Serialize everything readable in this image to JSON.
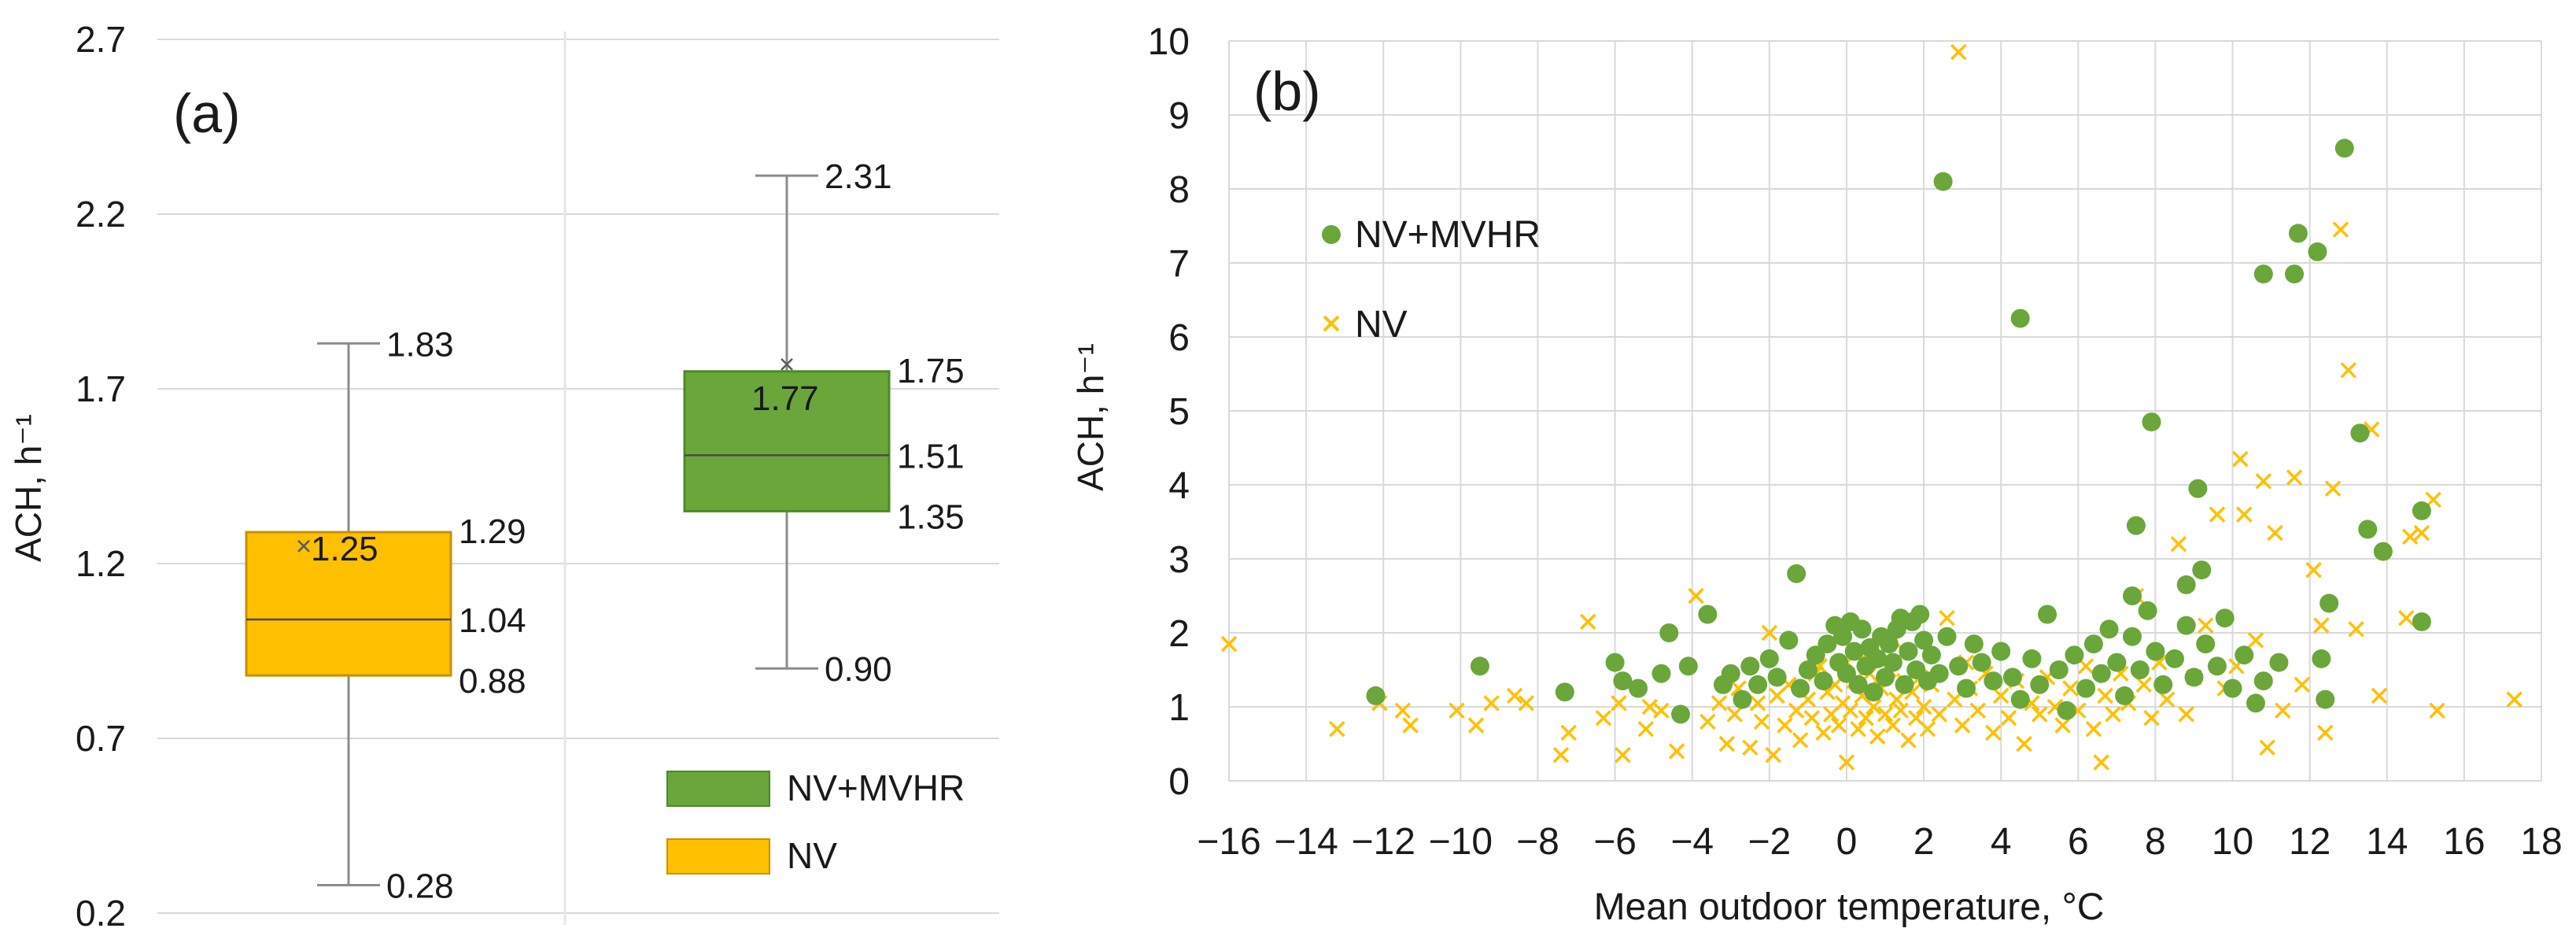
{
  "colors": {
    "nv_mvhr": "#6aa63a",
    "nv_mvhr_dark": "#4d8a25",
    "nv": "#ffc000",
    "nv_dark": "#c79100",
    "grid": "#d9d9d9",
    "whisker": "#8c8c8c"
  },
  "chart_data": [
    {
      "type": "box",
      "panel_label": "(a)",
      "ylabel": "ACH, h⁻¹",
      "ylim": [
        0.2,
        2.7
      ],
      "yticks": [
        0.2,
        0.7,
        1.2,
        1.7,
        2.2,
        2.7
      ],
      "ytick_labels": [
        "0.2",
        "0.7",
        "1.2",
        "1.7",
        "2.2",
        "2.7"
      ],
      "legend": [
        "NV+MVHR",
        "NV"
      ],
      "series": [
        {
          "name": "NV",
          "color": "#ffc000",
          "min": 0.28,
          "q1": 0.88,
          "median": 1.04,
          "q3": 1.29,
          "max": 1.83,
          "mean": 1.25,
          "labels": {
            "max": "1.83",
            "q3": "1.29",
            "mean": "1.25",
            "median": "1.04",
            "q1": "0.88",
            "min": "0.28"
          }
        },
        {
          "name": "NV+MVHR",
          "color": "#6aa63a",
          "min": 0.9,
          "q1": 1.35,
          "median": 1.51,
          "q3": 1.75,
          "max": 2.31,
          "mean": 1.77,
          "labels": {
            "max": "2.31",
            "q3": "1.75",
            "mean": "1.77",
            "median": "1.51",
            "q1": "1.35",
            "min": "0.90"
          }
        }
      ]
    },
    {
      "type": "scatter",
      "panel_label": "(b)",
      "xlabel": "Mean outdoor temperature, °C",
      "ylabel": "ACH, h⁻¹",
      "xlim": [
        -16,
        18
      ],
      "ylim": [
        0,
        10
      ],
      "xticks": [
        -16,
        -14,
        -12,
        -10,
        -8,
        -6,
        -4,
        -2,
        0,
        2,
        4,
        6,
        8,
        10,
        12,
        14,
        16,
        18
      ],
      "xtick_labels": [
        "−16",
        "−14",
        "−12",
        "−10",
        "−8",
        "−6",
        "−4",
        "−2",
        "0",
        "2",
        "4",
        "6",
        "8",
        "10",
        "12",
        "14",
        "16",
        "18"
      ],
      "yticks": [
        0,
        1,
        2,
        3,
        4,
        5,
        6,
        7,
        8,
        9,
        10
      ],
      "ytick_labels": [
        "0",
        "1",
        "2",
        "3",
        "4",
        "5",
        "6",
        "7",
        "8",
        "9",
        "10"
      ],
      "legend": [
        "NV+MVHR",
        "NV"
      ],
      "series": [
        {
          "name": "NV+MVHR",
          "marker": "circle",
          "color": "#6aa63a",
          "points": [
            [
              -12.2,
              1.15
            ],
            [
              -9.5,
              1.55
            ],
            [
              -7.3,
              1.2
            ],
            [
              -6,
              1.6
            ],
            [
              -5.8,
              1.35
            ],
            [
              -5.4,
              1.25
            ],
            [
              -4.8,
              1.45
            ],
            [
              -4.6,
              2.0
            ],
            [
              -4.3,
              0.9
            ],
            [
              -4.1,
              1.55
            ],
            [
              -3.6,
              2.25
            ],
            [
              -3.2,
              1.3
            ],
            [
              -3,
              1.45
            ],
            [
              -2.7,
              1.1
            ],
            [
              -2.5,
              1.55
            ],
            [
              -2.3,
              1.3
            ],
            [
              -2,
              1.65
            ],
            [
              -1.8,
              1.4
            ],
            [
              -1.5,
              1.9
            ],
            [
              -1.3,
              2.8
            ],
            [
              -1.2,
              1.25
            ],
            [
              -1,
              1.5
            ],
            [
              -0.8,
              1.7
            ],
            [
              -0.6,
              1.35
            ],
            [
              -0.5,
              1.85
            ],
            [
              -0.3,
              2.1
            ],
            [
              -0.2,
              1.6
            ],
            [
              -0.1,
              1.95
            ],
            [
              0,
              1.45
            ],
            [
              0.1,
              2.15
            ],
            [
              0.2,
              1.75
            ],
            [
              0.3,
              1.3
            ],
            [
              0.4,
              2.05
            ],
            [
              0.5,
              1.55
            ],
            [
              0.6,
              1.8
            ],
            [
              0.7,
              1.2
            ],
            [
              0.8,
              1.65
            ],
            [
              0.9,
              1.95
            ],
            [
              1,
              1.4
            ],
            [
              1.1,
              1.85
            ],
            [
              1.2,
              1.6
            ],
            [
              1.3,
              2.05
            ],
            [
              1.4,
              2.2
            ],
            [
              1.5,
              1.3
            ],
            [
              1.6,
              1.75
            ],
            [
              1.7,
              2.15
            ],
            [
              1.8,
              1.5
            ],
            [
              1.9,
              2.25
            ],
            [
              2,
              1.9
            ],
            [
              2.1,
              1.35
            ],
            [
              2.2,
              1.7
            ],
            [
              2.4,
              1.45
            ],
            [
              2.6,
              1.95
            ],
            [
              2.9,
              1.55
            ],
            [
              3.1,
              1.25
            ],
            [
              3.3,
              1.85
            ],
            [
              3.5,
              1.6
            ],
            [
              3.8,
              1.35
            ],
            [
              4,
              1.75
            ],
            [
              4.3,
              1.4
            ],
            [
              4.5,
              1.1
            ],
            [
              4.8,
              1.65
            ],
            [
              5,
              1.3
            ],
            [
              5.2,
              2.25
            ],
            [
              5.5,
              1.5
            ],
            [
              5.7,
              0.95
            ],
            [
              5.9,
              1.7
            ],
            [
              6.2,
              1.25
            ],
            [
              6.4,
              1.85
            ],
            [
              6.6,
              1.45
            ],
            [
              6.8,
              2.05
            ],
            [
              7,
              1.6
            ],
            [
              7.2,
              1.15
            ],
            [
              7.4,
              1.95
            ],
            [
              7.6,
              1.5
            ],
            [
              7.8,
              2.3
            ],
            [
              8,
              1.75
            ],
            [
              8.2,
              1.3
            ],
            [
              8.5,
              1.65
            ],
            [
              8.8,
              2.1
            ],
            [
              9,
              1.4
            ],
            [
              9.3,
              1.85
            ],
            [
              9.6,
              1.55
            ],
            [
              9.8,
              2.2
            ],
            [
              10,
              1.25
            ],
            [
              10.3,
              1.7
            ],
            [
              10.6,
              1.05
            ],
            [
              10.8,
              1.35
            ],
            [
              11.2,
              1.6
            ],
            [
              12.4,
              1.1
            ],
            [
              12.3,
              1.65
            ],
            [
              7.4,
              2.5
            ],
            [
              7.5,
              3.45
            ],
            [
              7.9,
              4.85
            ],
            [
              8.8,
              2.65
            ],
            [
              9.1,
              3.95
            ],
            [
              9.2,
              2.85
            ],
            [
              10.8,
              6.85
            ],
            [
              11.6,
              6.85
            ],
            [
              11.7,
              7.4
            ],
            [
              12.2,
              7.15
            ],
            [
              12.9,
              8.55
            ],
            [
              13.3,
              4.7
            ],
            [
              13.5,
              3.4
            ],
            [
              13.9,
              3.1
            ],
            [
              14.9,
              3.65
            ],
            [
              14.9,
              2.15
            ],
            [
              12.5,
              2.4
            ],
            [
              2.5,
              8.1
            ],
            [
              4.5,
              6.25
            ]
          ]
        },
        {
          "name": "NV",
          "marker": "x",
          "color": "#ffc000",
          "points": [
            [
              -16,
              1.85
            ],
            [
              -13.2,
              0.7
            ],
            [
              -12.1,
              1.05
            ],
            [
              -11.5,
              0.95
            ],
            [
              -11.3,
              0.75
            ],
            [
              -10.1,
              0.95
            ],
            [
              -9.6,
              0.75
            ],
            [
              -9.2,
              1.05
            ],
            [
              -8.6,
              1.15
            ],
            [
              -8.3,
              1.05
            ],
            [
              -7.4,
              0.35
            ],
            [
              -7.2,
              0.65
            ],
            [
              -6.7,
              2.15
            ],
            [
              -6.3,
              0.85
            ],
            [
              -5.9,
              1.05
            ],
            [
              -5.8,
              0.35
            ],
            [
              -5.2,
              0.7
            ],
            [
              -5.1,
              1.0
            ],
            [
              -4.8,
              0.95
            ],
            [
              -4.4,
              0.4
            ],
            [
              -3.9,
              2.5
            ],
            [
              -3.6,
              0.8
            ],
            [
              -3.3,
              1.05
            ],
            [
              -3.1,
              0.5
            ],
            [
              -2.9,
              0.9
            ],
            [
              -2.8,
              1.25
            ],
            [
              -2.5,
              0.45
            ],
            [
              -2.3,
              1.05
            ],
            [
              -2.2,
              0.8
            ],
            [
              -2.0,
              2.0
            ],
            [
              -1.9,
              0.35
            ],
            [
              -1.8,
              1.15
            ],
            [
              -1.6,
              0.75
            ],
            [
              -1.5,
              1.3
            ],
            [
              -1.3,
              0.95
            ],
            [
              -1.2,
              0.55
            ],
            [
              -1.0,
              1.1
            ],
            [
              -0.9,
              0.85
            ],
            [
              -0.8,
              1.45
            ],
            [
              -0.6,
              0.65
            ],
            [
              -0.5,
              1.2
            ],
            [
              -0.4,
              0.9
            ],
            [
              -0.3,
              1.3
            ],
            [
              -0.2,
              0.75
            ],
            [
              -0.1,
              1.05
            ],
            [
              0,
              1.6
            ],
            [
              0,
              0.25
            ],
            [
              0.1,
              0.95
            ],
            [
              0.2,
              1.35
            ],
            [
              0.3,
              0.7
            ],
            [
              0.4,
              1.15
            ],
            [
              0.5,
              0.85
            ],
            [
              0.6,
              1.45
            ],
            [
              0.7,
              1.0
            ],
            [
              0.8,
              0.6
            ],
            [
              0.9,
              1.25
            ],
            [
              1.0,
              0.9
            ],
            [
              1.1,
              1.5
            ],
            [
              1.2,
              0.75
            ],
            [
              1.3,
              1.1
            ],
            [
              1.4,
              0.95
            ],
            [
              1.5,
              1.35
            ],
            [
              1.6,
              0.55
            ],
            [
              1.7,
              1.2
            ],
            [
              1.8,
              0.85
            ],
            [
              1.9,
              1.4
            ],
            [
              2.0,
              1.0
            ],
            [
              2.1,
              0.7
            ],
            [
              2.2,
              1.3
            ],
            [
              2.4,
              0.9
            ],
            [
              2.6,
              2.2
            ],
            [
              2.8,
              1.1
            ],
            [
              3.0,
              0.75
            ],
            [
              3.2,
              1.25
            ],
            [
              3.4,
              0.95
            ],
            [
              3.6,
              1.45
            ],
            [
              3.8,
              0.65
            ],
            [
              4.0,
              1.15
            ],
            [
              4.2,
              0.85
            ],
            [
              4.4,
              1.35
            ],
            [
              4.6,
              0.5
            ],
            [
              4.8,
              1.05
            ],
            [
              5.0,
              0.9
            ],
            [
              5.2,
              1.4
            ],
            [
              5.4,
              1.0
            ],
            [
              5.6,
              0.75
            ],
            [
              5.8,
              1.25
            ],
            [
              6.0,
              0.95
            ],
            [
              6.2,
              1.55
            ],
            [
              6.4,
              0.7
            ],
            [
              6.6,
              0.25
            ],
            [
              6.7,
              1.15
            ],
            [
              6.9,
              0.9
            ],
            [
              7.1,
              1.45
            ],
            [
              7.3,
              1.05
            ],
            [
              7.5,
              2.5
            ],
            [
              7.7,
              1.3
            ],
            [
              7.9,
              0.85
            ],
            [
              8.1,
              1.6
            ],
            [
              8.3,
              1.1
            ],
            [
              8.6,
              3.2
            ],
            [
              8.8,
              0.9
            ],
            [
              9.0,
              1.4
            ],
            [
              9.3,
              2.1
            ],
            [
              9.6,
              3.6
            ],
            [
              9.8,
              1.25
            ],
            [
              10.1,
              1.55
            ],
            [
              10.2,
              4.35
            ],
            [
              10.3,
              3.6
            ],
            [
              10.6,
              1.9
            ],
            [
              10.8,
              4.05
            ],
            [
              10.9,
              0.45
            ],
            [
              11.1,
              3.35
            ],
            [
              11.3,
              0.95
            ],
            [
              11.6,
              4.1
            ],
            [
              11.8,
              1.3
            ],
            [
              12.1,
              2.85
            ],
            [
              12.3,
              2.1
            ],
            [
              12.4,
              0.65
            ],
            [
              12.6,
              3.95
            ],
            [
              12.8,
              7.45
            ],
            [
              13.0,
              5.55
            ],
            [
              13.2,
              2.05
            ],
            [
              13.6,
              4.75
            ],
            [
              13.8,
              1.15
            ],
            [
              14.5,
              2.2
            ],
            [
              14.6,
              3.3
            ],
            [
              14.9,
              3.35
            ],
            [
              15.2,
              3.8
            ],
            [
              15.3,
              0.95
            ],
            [
              17.3,
              1.1
            ],
            [
              2.9,
              9.85
            ],
            [
              0.5,
              1.7
            ],
            [
              -0.7,
              1.55
            ],
            [
              1.5,
              1.75
            ],
            [
              3.1,
              1.6
            ]
          ]
        }
      ]
    }
  ]
}
